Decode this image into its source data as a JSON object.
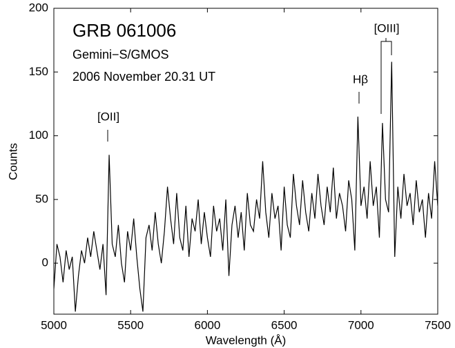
{
  "chart_data": {
    "type": "line",
    "title": "GRB 061006",
    "annotations": [
      "Gemini−S/GMOS",
      "2006 November 20.31 UT"
    ],
    "line_labels": [
      "[OII]",
      "Hβ",
      "[OIII]"
    ],
    "xlabel": "Wavelength  (Å)",
    "ylabel": "Counts",
    "color": "#000000",
    "xlim": [
      5000,
      7500
    ],
    "ylim": [
      -40,
      200
    ],
    "xticks": [
      5000,
      5500,
      6000,
      6500,
      7000,
      7500
    ],
    "yticks": [
      0,
      50,
      100,
      150,
      200
    ],
    "x": [
      5000,
      5020,
      5040,
      5060,
      5080,
      5100,
      5120,
      5140,
      5160,
      5180,
      5200,
      5220,
      5240,
      5260,
      5280,
      5300,
      5320,
      5340,
      5360,
      5380,
      5400,
      5420,
      5440,
      5460,
      5480,
      5500,
      5520,
      5540,
      5560,
      5580,
      5600,
      5620,
      5640,
      5660,
      5680,
      5700,
      5720,
      5740,
      5760,
      5780,
      5800,
      5820,
      5840,
      5860,
      5880,
      5900,
      5920,
      5940,
      5960,
      5980,
      6000,
      6020,
      6040,
      6060,
      6080,
      6100,
      6120,
      6140,
      6160,
      6180,
      6200,
      6220,
      6240,
      6260,
      6280,
      6300,
      6320,
      6340,
      6360,
      6380,
      6400,
      6420,
      6440,
      6460,
      6480,
      6500,
      6520,
      6540,
      6560,
      6580,
      6600,
      6620,
      6640,
      6660,
      6680,
      6700,
      6720,
      6740,
      6760,
      6780,
      6800,
      6820,
      6840,
      6860,
      6880,
      6900,
      6920,
      6940,
      6960,
      6980,
      7000,
      7020,
      7040,
      7060,
      7080,
      7100,
      7120,
      7140,
      7160,
      7180,
      7200,
      7220,
      7240,
      7260,
      7280,
      7300,
      7320,
      7340,
      7360,
      7380,
      7400,
      7420,
      7440,
      7460,
      7480,
      7500
    ],
    "values": [
      -20,
      15,
      5,
      -15,
      10,
      -5,
      5,
      -38,
      -10,
      10,
      0,
      20,
      5,
      25,
      10,
      -5,
      15,
      -25,
      85,
      15,
      5,
      30,
      0,
      -15,
      25,
      10,
      35,
      5,
      -20,
      -38,
      20,
      30,
      10,
      40,
      15,
      0,
      25,
      60,
      35,
      15,
      55,
      20,
      10,
      45,
      5,
      35,
      25,
      50,
      15,
      40,
      20,
      5,
      45,
      25,
      35,
      10,
      50,
      -10,
      30,
      45,
      20,
      40,
      10,
      55,
      30,
      25,
      50,
      35,
      80,
      40,
      20,
      55,
      35,
      45,
      10,
      60,
      30,
      20,
      70,
      45,
      30,
      65,
      40,
      25,
      55,
      35,
      70,
      45,
      30,
      60,
      40,
      75,
      35,
      55,
      45,
      25,
      65,
      50,
      10,
      115,
      45,
      60,
      35,
      80,
      45,
      60,
      20,
      110,
      50,
      40,
      158,
      5,
      60,
      35,
      70,
      45,
      55,
      30,
      65,
      40,
      50,
      20,
      55,
      35,
      80,
      45
    ]
  }
}
